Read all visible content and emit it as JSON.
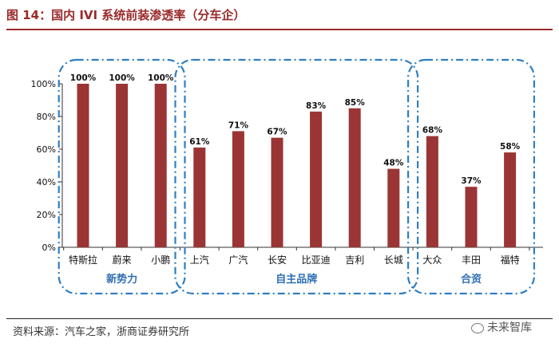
{
  "title": "图 14：国内 IVI 系统前装渗透率（分车企）",
  "source": "资料来源：汽车之家，浙商证券研究所",
  "watermark": "未来智库",
  "colors": {
    "bar": "#9b3535",
    "group_border": "#2f7fc1",
    "group_label": "#2f6fb3",
    "title": "#9b2a2a"
  },
  "chart_data": {
    "type": "bar",
    "categories": [
      "特斯拉",
      "蔚来",
      "小鹏",
      "上汽",
      "广汽",
      "长安",
      "比亚迪",
      "吉利",
      "长城",
      "大众",
      "丰田",
      "福特"
    ],
    "values": [
      100,
      100,
      100,
      61,
      71,
      67,
      83,
      85,
      48,
      68,
      37,
      58
    ],
    "data_labels": [
      "100%",
      "100%",
      "100%",
      "61%",
      "71%",
      "67%",
      "83%",
      "85%",
      "48%",
      "68%",
      "37%",
      "58%"
    ],
    "ylim": [
      0,
      100
    ],
    "yticks": [
      0,
      20,
      40,
      60,
      80,
      100
    ],
    "ytick_labels": [
      "0%",
      "20%",
      "40%",
      "60%",
      "80%",
      "100%"
    ],
    "groups": [
      {
        "name": "新势力",
        "categories": [
          "特斯拉",
          "蔚来",
          "小鹏"
        ]
      },
      {
        "name": "自主品牌",
        "categories": [
          "上汽",
          "广汽",
          "长安",
          "比亚迪",
          "吉利",
          "长城"
        ]
      },
      {
        "name": "合资",
        "categories": [
          "大众",
          "丰田",
          "福特"
        ]
      }
    ],
    "grid": false,
    "legend": "none"
  }
}
